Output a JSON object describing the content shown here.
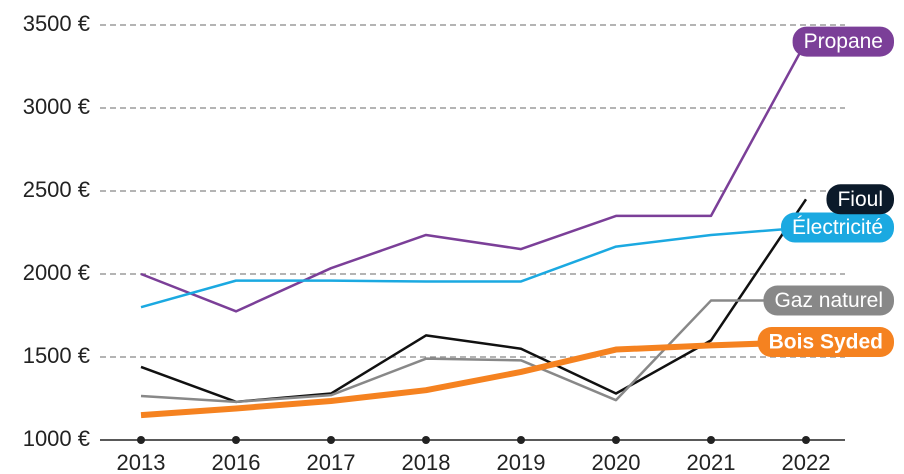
{
  "chart_data": {
    "type": "line",
    "categories": [
      "2013",
      "2016",
      "2017",
      "2018",
      "2019",
      "2020",
      "2021",
      "2022"
    ],
    "ylim": [
      1000,
      3500
    ],
    "yticks": [
      {
        "value": 1000,
        "label": "1000 €"
      },
      {
        "value": 1500,
        "label": "1500 €"
      },
      {
        "value": 2000,
        "label": "2000 €"
      },
      {
        "value": 2500,
        "label": "2500 €"
      },
      {
        "value": 3000,
        "label": "3000 €"
      },
      {
        "value": 3500,
        "label": "3500 €"
      }
    ],
    "grid": true,
    "series": [
      {
        "name": "Propane",
        "color": "#7b3f98",
        "values": [
          2000,
          1775,
          2035,
          2235,
          2150,
          2350,
          2350,
          3400
        ]
      },
      {
        "name": "Électricité",
        "color": "#1ba9e1",
        "values": [
          1800,
          1960,
          1960,
          1955,
          1955,
          2165,
          2235,
          2280
        ]
      },
      {
        "name": "Fioul",
        "color": "#111111",
        "values": [
          1440,
          1230,
          1280,
          1630,
          1550,
          1280,
          1600,
          2450
        ]
      },
      {
        "name": "Gaz naturel",
        "color": "#888888",
        "values": [
          1265,
          1230,
          1270,
          1490,
          1480,
          1240,
          1840,
          1840
        ]
      },
      {
        "name": "Bois Syded",
        "color": "#f58220",
        "values": [
          1150,
          1190,
          1235,
          1300,
          1410,
          1545,
          1570,
          1590
        ]
      }
    ]
  }
}
